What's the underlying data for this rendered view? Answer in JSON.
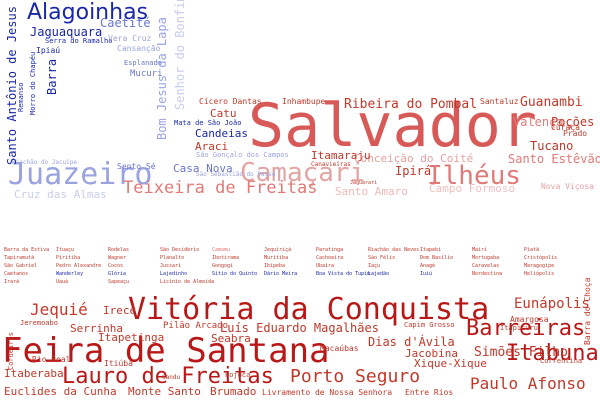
{
  "colors": {
    "blue": "#1f2fb3",
    "blue_light": "#9aa3e0",
    "red": "#c0392b",
    "red_dark": "#b01818",
    "red_light": "#e89a9a"
  },
  "words": [
    {
      "id": "salvador",
      "text": "Salvador",
      "color": "#d85a58",
      "style": "mono"
    },
    {
      "id": "feira-de-santana",
      "text": "Feira de Santana",
      "color": "#b81818",
      "style": "mono"
    },
    {
      "id": "vitoria-da-conquista",
      "text": "Vitória da Conquista",
      "color": "#b81818",
      "style": "mono"
    },
    {
      "id": "lauro-de-freitas",
      "text": "Lauro de Freitas",
      "color": "#b81818",
      "style": "mono"
    },
    {
      "id": "camacari",
      "text": "Camaçari",
      "color": "#e3a4a4",
      "style": "mono"
    },
    {
      "id": "juazeiro",
      "text": "Juazeiro",
      "color": "#9aa3e0",
      "style": "mono"
    },
    {
      "id": "ilheus",
      "text": "Ilhéus",
      "color": "#e07a78",
      "style": "mono"
    },
    {
      "id": "teixeira-de-freitas",
      "text": "Teixeira de Freitas",
      "color": "#e07a78",
      "style": "mono"
    },
    {
      "id": "alagoinhas",
      "text": "Alagoinhas",
      "color": "#1a28a8",
      "style": "sans"
    },
    {
      "id": "barreiras",
      "text": "Barreiras",
      "color": "#b81818",
      "style": "mono"
    },
    {
      "id": "itabuna",
      "text": "Itabuna",
      "color": "#b81818",
      "style": "mono"
    },
    {
      "id": "porto-seguro",
      "text": "Porto Seguro",
      "color": "#c0392b",
      "style": "mono"
    },
    {
      "id": "jequie",
      "text": "Jequié",
      "color": "#c0392b",
      "style": "mono"
    },
    {
      "id": "paulo-afonso",
      "text": "Paulo Afonso",
      "color": "#c0392b",
      "style": "mono"
    },
    {
      "id": "eunapolis",
      "text": "Eunápolis",
      "color": "#c0392b",
      "style": "mono"
    },
    {
      "id": "simoes-filho",
      "text": "Simões Filho",
      "color": "#c0392b",
      "style": "mono"
    },
    {
      "id": "luis-eduardo-magalhaes",
      "text": "Luís Eduardo Magalhães",
      "color": "#c0392b",
      "style": "mono"
    },
    {
      "id": "ribeira-do-pombal",
      "text": "Ribeira do Pombal",
      "color": "#c0392b",
      "style": "mono"
    },
    {
      "id": "guanambi",
      "text": "Guanambi",
      "color": "#c0392b",
      "style": "mono"
    },
    {
      "id": "santo-estevao",
      "text": "Santo Estêvão",
      "color": "#e07a78",
      "style": "mono"
    },
    {
      "id": "tucano",
      "text": "Tucano",
      "color": "#c0392b",
      "style": "mono"
    },
    {
      "id": "valenca",
      "text": "Valença",
      "color": "#e07a78",
      "style": "mono"
    },
    {
      "id": "pocoes",
      "text": "Poções",
      "color": "#c0392b",
      "style": "mono"
    },
    {
      "id": "conceicao-do-coite",
      "text": "Conceição do Coité",
      "color": "#e8a0a0",
      "style": "mono"
    },
    {
      "id": "ipira",
      "text": "Ipirá",
      "color": "#c0392b",
      "style": "mono"
    },
    {
      "id": "santo-amaro",
      "text": "Santo Amaro",
      "color": "#f0b8b8",
      "style": "mono"
    },
    {
      "id": "campo-formoso",
      "text": "Campo Formoso",
      "color": "#f0c0c0",
      "style": "mono"
    },
    {
      "id": "cruz-das-almas",
      "text": "Cruz das Almas",
      "color": "#c8ccee",
      "style": "mono"
    },
    {
      "id": "casa-nova",
      "text": "Casa Nova",
      "color": "#6b76cc",
      "style": "mono"
    },
    {
      "id": "catu",
      "text": "Catu",
      "color": "#c0392b",
      "style": "mono"
    },
    {
      "id": "araci",
      "text": "Araci",
      "color": "#c0392b",
      "style": "mono"
    },
    {
      "id": "candeias",
      "text": "Candeias",
      "color": "#1a28a8",
      "style": "mono"
    },
    {
      "id": "itamaraju",
      "text": "Itamaraju",
      "color": "#c0392b",
      "style": "mono"
    },
    {
      "id": "jaguaquara",
      "text": "Jaguaquara",
      "color": "#1a28a8",
      "style": "mono"
    },
    {
      "id": "santo-antonio-de-jesus",
      "text": "Santo Antônio de Jesus",
      "color": "#1a28a8",
      "style": "mono"
    },
    {
      "id": "barra",
      "text": "Barra",
      "color": "#1a28a8",
      "style": "mono"
    },
    {
      "id": "caetite",
      "text": "Caetité",
      "color": "#6b76cc",
      "style": "mono"
    },
    {
      "id": "bom-jesus-da-lapa",
      "text": "Bom Jesus da Lapa",
      "color": "#9aa3e0",
      "style": "mono"
    },
    {
      "id": "senhor-do-bonfim",
      "text": "Senhor do Bonfim",
      "color": "#c8ccee",
      "style": "mono"
    },
    {
      "id": "mucuri",
      "text": "Mucuri",
      "color": "#6b76cc",
      "style": "mono"
    },
    {
      "id": "mata-de-sao-joao",
      "text": "Mata de São João",
      "color": "#1a28a8",
      "style": "mono"
    },
    {
      "id": "cicero-dantas",
      "text": "Cícero Dantas",
      "color": "#c0392b",
      "style": "mono"
    },
    {
      "id": "inhambupe",
      "text": "Inhambupe",
      "color": "#c0392b",
      "style": "mono"
    },
    {
      "id": "santaluz",
      "text": "Santaluz",
      "color": "#c0392b",
      "style": "mono"
    },
    {
      "id": "prado",
      "text": "Prado",
      "color": "#c0392b",
      "style": "mono"
    },
    {
      "id": "curaca",
      "text": "Curaçá",
      "color": "#c0392b",
      "style": "mono"
    },
    {
      "id": "nova-vicosa",
      "text": "Nova Viçosa",
      "color": "#e8a0a0",
      "style": "mono"
    },
    {
      "id": "ipiau",
      "text": "Ipiaú",
      "color": "#1a28a8",
      "style": "mono"
    },
    {
      "id": "serra-do-ramalho",
      "text": "Serra do Ramalho",
      "color": "#1a28a8",
      "style": "mono"
    },
    {
      "id": "vera-cruz",
      "text": "Vera Cruz",
      "color": "#9aa3e0",
      "style": "mono"
    },
    {
      "id": "cansancao",
      "text": "Cansanção",
      "color": "#9aa3e0",
      "style": "mono"
    },
    {
      "id": "esplanada",
      "text": "Esplanada",
      "color": "#6b76cc",
      "style": "mono"
    },
    {
      "id": "remanso",
      "text": "Remanso",
      "color": "#1a28a8",
      "style": "mono"
    },
    {
      "id": "morro-do-chapeu",
      "text": "Morro do Chapéu",
      "color": "#1a28a8",
      "style": "mono"
    },
    {
      "id": "riachao-do-jacuipe",
      "text": "Riachão do Jacuípe",
      "color": "#9aa3e0",
      "style": "mono"
    },
    {
      "id": "sento-se",
      "text": "Sento Sé",
      "color": "#6b76cc",
      "style": "mono"
    },
    {
      "id": "sao-goncalo-dos-campos",
      "text": "São Gonçalo dos Campos",
      "color": "#9aa3e0",
      "style": "mono"
    },
    {
      "id": "sao-sebastiao-do-passe",
      "text": "São Sebastião do Passé",
      "color": "#9aa3e0",
      "style": "mono"
    },
    {
      "id": "canavieiras",
      "text": "Canavieiras",
      "color": "#c0392b",
      "style": "mono"
    },
    {
      "id": "macaubas",
      "text": "Macaúbas",
      "color": "#c0392b",
      "style": "mono"
    },
    {
      "id": "jaguarari",
      "text": "Jaguarari",
      "color": "#c0392b",
      "style": "mono"
    },
    {
      "id": "irece",
      "text": "Irecê",
      "color": "#c0392b",
      "style": "mono"
    },
    {
      "id": "serrinha",
      "text": "Serrinha",
      "color": "#c0392b",
      "style": "mono"
    },
    {
      "id": "itapetinga",
      "text": "Itapetinga",
      "color": "#c0392b",
      "style": "mono"
    },
    {
      "id": "seabra",
      "text": "Seabra",
      "color": "#c0392b",
      "style": "mono"
    },
    {
      "id": "dias-d-avila",
      "text": "Dias d'Ávila",
      "color": "#c0392b",
      "style": "mono"
    },
    {
      "id": "jacobina",
      "text": "Jacobina",
      "color": "#c0392b",
      "style": "mono"
    },
    {
      "id": "xique-xique",
      "text": "Xique-Xique",
      "color": "#c0392b",
      "style": "mono"
    },
    {
      "id": "itaberaba",
      "text": "Itaberaba",
      "color": "#c0392b",
      "style": "mono"
    },
    {
      "id": "euclides-da-cunha",
      "text": "Euclides da Cunha",
      "color": "#c0392b",
      "style": "mono"
    },
    {
      "id": "monte-santo",
      "text": "Monte Santo",
      "color": "#c0392b",
      "style": "mono"
    },
    {
      "id": "brumado",
      "text": "Brumado",
      "color": "#c0392b",
      "style": "mono"
    },
    {
      "id": "livramento-de-nossa-senhora",
      "text": "Livramento de Nossa Senhora",
      "color": "#c0392b",
      "style": "mono"
    },
    {
      "id": "entre-rios",
      "text": "Entre Rios",
      "color": "#c0392b",
      "style": "mono"
    },
    {
      "id": "rio-real",
      "text": "Rio Real",
      "color": "#c0392b",
      "style": "mono"
    },
    {
      "id": "itiuba",
      "text": "Itiúba",
      "color": "#c0392b",
      "style": "mono"
    },
    {
      "id": "amargosa",
      "text": "Amargosa",
      "color": "#c0392b",
      "style": "mono"
    },
    {
      "id": "correntina",
      "text": "Correntina",
      "color": "#c0392b",
      "style": "mono"
    },
    {
      "id": "pojuca",
      "text": "Pojuca",
      "color": "#c0392b",
      "style": "mono"
    },
    {
      "id": "gandu",
      "text": "Gandu",
      "color": "#c0392b",
      "style": "mono"
    },
    {
      "id": "pilao-arcado",
      "text": "Pilão Arcado",
      "color": "#c0392b",
      "style": "mono"
    },
    {
      "id": "jeremoabo",
      "text": "Jeremoabo",
      "color": "#c0392b",
      "style": "mono"
    },
    {
      "id": "itapicuru",
      "text": "Itapicuru",
      "color": "#c0392b",
      "style": "mono"
    },
    {
      "id": "capim-grosso",
      "text": "Capim Grosso",
      "color": "#c0392b",
      "style": "mono"
    },
    {
      "id": "barra-da-estiva",
      "text": "Barra da Estiva",
      "color": "#c0392b",
      "style": "mono"
    },
    {
      "id": "barra-do-choca",
      "text": "Barra do Choça",
      "color": "#c0392b",
      "style": "mono"
    },
    {
      "id": "ituacu",
      "text": "Ituaçu",
      "color": "#c0392b",
      "style": "mono"
    },
    {
      "id": "rodelas",
      "text": "Rodelas",
      "color": "#c0392b",
      "style": "mono"
    },
    {
      "id": "sao-desiderio",
      "text": "São Desidério",
      "color": "#c0392b",
      "style": "mono"
    },
    {
      "id": "camamu",
      "text": "Camamu",
      "color": "#e07a78",
      "style": "mono"
    },
    {
      "id": "jequirica",
      "text": "Jequiriçá",
      "color": "#c0392b",
      "style": "mono"
    },
    {
      "id": "paratinga",
      "text": "Paratinga",
      "color": "#c0392b",
      "style": "mono"
    },
    {
      "id": "riachao-das-neves",
      "text": "Riachão das Neves",
      "color": "#c0392b",
      "style": "mono"
    },
    {
      "id": "itapebi",
      "text": "Itapebi",
      "color": "#c0392b",
      "style": "mono"
    },
    {
      "id": "mairi",
      "text": "Mairi",
      "color": "#c0392b",
      "style": "mono"
    },
    {
      "id": "piata",
      "text": "Piatã",
      "color": "#c0392b",
      "style": "mono"
    },
    {
      "id": "tapiramuta",
      "text": "Tapiramutá",
      "color": "#c0392b",
      "style": "mono"
    },
    {
      "id": "piritiba",
      "text": "Piritiba",
      "color": "#c0392b",
      "style": "mono"
    },
    {
      "id": "wagner",
      "text": "Wagner",
      "color": "#c0392b",
      "style": "mono"
    },
    {
      "id": "planalto",
      "text": "Planalto",
      "color": "#c0392b",
      "style": "mono"
    },
    {
      "id": "ibotirama",
      "text": "Ibotirama",
      "color": "#c0392b",
      "style": "mono"
    },
    {
      "id": "muritiba",
      "text": "Muritiba",
      "color": "#c0392b",
      "style": "mono"
    },
    {
      "id": "cachoeira",
      "text": "Cachoeira",
      "color": "#c0392b",
      "style": "mono"
    },
    {
      "id": "sao-felix",
      "text": "São Félix",
      "color": "#c0392b",
      "style": "mono"
    },
    {
      "id": "dom-basilio",
      "text": "Dom Basílio",
      "color": "#c0392b",
      "style": "mono"
    },
    {
      "id": "mortugaba",
      "text": "Mortugaba",
      "color": "#c0392b",
      "style": "mono"
    },
    {
      "id": "cristopolis",
      "text": "Cristópolis",
      "color": "#c0392b",
      "style": "mono"
    },
    {
      "id": "sao-gabriel",
      "text": "São Gabriel",
      "color": "#c0392b",
      "style": "mono"
    },
    {
      "id": "pedro-alexandre",
      "text": "Pedro Alexandre",
      "color": "#c0392b",
      "style": "mono"
    },
    {
      "id": "cocos",
      "text": "Cocos",
      "color": "#c0392b",
      "style": "mono"
    },
    {
      "id": "jussari",
      "text": "Jussari",
      "color": "#c0392b",
      "style": "mono"
    },
    {
      "id": "gongogi",
      "text": "Gongogi",
      "color": "#c0392b",
      "style": "mono"
    },
    {
      "id": "ibipeba",
      "text": "Ibipeba",
      "color": "#c0392b",
      "style": "mono"
    },
    {
      "id": "ubaira",
      "text": "Ubaíra",
      "color": "#c0392b",
      "style": "mono"
    },
    {
      "id": "iacu",
      "text": "Iaçu",
      "color": "#c0392b",
      "style": "mono"
    },
    {
      "id": "anage",
      "text": "Anagé",
      "color": "#c0392b",
      "style": "mono"
    },
    {
      "id": "caravelas",
      "text": "Caravelas",
      "color": "#c0392b",
      "style": "mono"
    },
    {
      "id": "cordeiros",
      "text": "Cordeiros",
      "color": "#c0392b",
      "style": "mono"
    },
    {
      "id": "maragogipe",
      "text": "Maragogipe",
      "color": "#c0392b",
      "style": "mono"
    },
    {
      "id": "caetanos",
      "text": "Caetanos",
      "color": "#c0392b",
      "style": "mono"
    },
    {
      "id": "wanderley",
      "text": "Wanderley",
      "color": "#1a28a8",
      "style": "mono"
    },
    {
      "id": "gloria",
      "text": "Glória",
      "color": "#1a28a8",
      "style": "mono"
    },
    {
      "id": "lajedinho",
      "text": "Lajedinho",
      "color": "#1a28a8",
      "style": "mono"
    },
    {
      "id": "sitio-do-quinto",
      "text": "Sítio do Quinto",
      "color": "#1a28a8",
      "style": "mono"
    },
    {
      "id": "dario-meira",
      "text": "Dário Meira",
      "color": "#1a28a8",
      "style": "mono"
    },
    {
      "id": "boa-vista-do-tupim",
      "text": "Boa Vista do Tupim",
      "color": "#1a28a8",
      "style": "mono"
    },
    {
      "id": "lajedao",
      "text": "Lajedão",
      "color": "#1a28a8",
      "style": "mono"
    },
    {
      "id": "iuiu",
      "text": "Iuiú",
      "color": "#1a28a8",
      "style": "mono"
    },
    {
      "id": "nordestina",
      "text": "Nordestina",
      "color": "#c0392b",
      "style": "mono"
    },
    {
      "id": "heliopolis",
      "text": "Heliópolis",
      "color": "#c0392b",
      "style": "mono"
    },
    {
      "id": "irara",
      "text": "Irará",
      "color": "#c0392b",
      "style": "mono"
    },
    {
      "id": "uaua",
      "text": "Uauá",
      "color": "#c0392b",
      "style": "mono"
    },
    {
      "id": "sapeacu",
      "text": "Sapeaçu",
      "color": "#c0392b",
      "style": "mono"
    },
    {
      "id": "licinio-de-almeida",
      "text": "Licínio de Almeida",
      "color": "#c0392b",
      "style": "mono"
    }
  ]
}
